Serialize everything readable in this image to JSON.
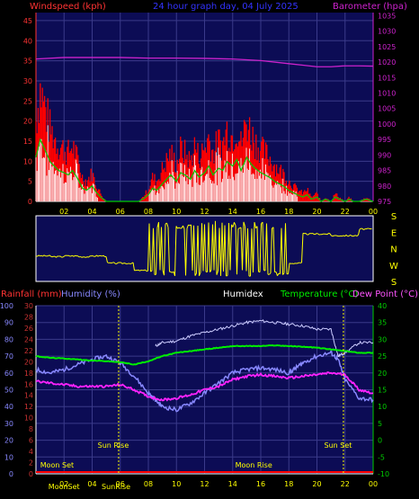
{
  "header": {
    "left_label": "Windspeed (kph)",
    "center_label": "24 hour graph day, 04 July 2025",
    "right_label": "Barometer (hpa)"
  },
  "colors": {
    "plot_bg": "#0c0c55",
    "grid": "#3a3a8a",
    "wind": "#ff0000",
    "gust_white": "#ffffff",
    "wind_green": "#00cc00",
    "barometer": "#cc22cc",
    "direction": "#ffff00",
    "temperature": "#00ee00",
    "humidity": "#8888ff",
    "humidex": "#ccccff",
    "dewpoint": "#ff22ff",
    "rainfall": "#ff0000",
    "axis_left": "#cc3333",
    "axis_left2": "#8888ff",
    "axis_right": "#00cc00",
    "axis_baro": "#cc22cc",
    "sun": "#ffff00"
  },
  "chart_data": [
    {
      "type": "line",
      "name": "wind-and-barometer",
      "x_ticks": [
        "02",
        "04",
        "06",
        "08",
        "10",
        "12",
        "14",
        "16",
        "18",
        "20",
        "22",
        "00"
      ],
      "y_left_ticks": [
        0,
        5,
        10,
        15,
        20,
        25,
        30,
        35,
        40,
        45
      ],
      "y_left_range": [
        0,
        47
      ],
      "y_right_ticks": [
        975,
        980,
        985,
        990,
        995,
        1000,
        1005,
        1010,
        1015,
        1020,
        1025,
        1030,
        1035
      ],
      "y_right_range": [
        975,
        1036
      ],
      "series": [
        {
          "name": "Windspeed (kph)",
          "x": [
            0.0,
            0.3,
            0.6,
            1.0,
            1.3,
            1.6,
            2.0,
            2.3,
            2.6,
            3.0,
            3.3,
            3.6,
            4.0,
            4.3,
            4.6,
            5.0,
            5.3,
            5.6,
            6.0,
            6.3,
            6.6,
            7.0,
            7.3,
            7.6,
            8.0,
            8.3,
            8.6,
            9.0,
            9.3,
            9.6,
            10.0,
            10.3,
            10.6,
            11.0,
            11.3,
            11.6,
            12.0,
            12.3,
            12.6,
            13.0,
            13.3,
            13.6,
            14.0,
            14.3,
            14.6,
            15.0,
            15.3,
            15.6,
            16.0,
            16.3,
            16.6,
            17.0,
            17.3,
            17.6,
            18.0,
            18.3,
            18.6,
            19.0,
            19.3,
            19.6,
            20.0,
            20.3,
            20.6,
            21.0,
            21.3,
            21.6,
            22.0,
            22.3,
            22.6,
            23.0,
            23.5,
            24.0
          ],
          "values": [
            20,
            28,
            24,
            18,
            16,
            14,
            13,
            12,
            14,
            10,
            6,
            5,
            7,
            4,
            2,
            0,
            0,
            0,
            0,
            0,
            0,
            0,
            0,
            1,
            3,
            6,
            5,
            8,
            10,
            12,
            9,
            13,
            12,
            10,
            14,
            11,
            13,
            16,
            12,
            15,
            14,
            18,
            16,
            19,
            14,
            20,
            17,
            15,
            13,
            12,
            11,
            9,
            8,
            7,
            5,
            4,
            3,
            2,
            3,
            1,
            2,
            0,
            1,
            0,
            2,
            1,
            0,
            1,
            0,
            0,
            1,
            0
          ]
        },
        {
          "name": "Barometer (hpa)",
          "x": [
            0,
            2,
            4,
            6,
            8,
            10,
            12,
            14,
            16,
            18,
            19,
            20,
            21,
            22,
            23,
            24
          ],
          "values": [
            1021,
            1021.5,
            1021.5,
            1021.5,
            1021.3,
            1021.3,
            1021.2,
            1021,
            1020.5,
            1019.5,
            1019,
            1018.5,
            1018.5,
            1018.8,
            1018.8,
            1018.7
          ]
        }
      ]
    },
    {
      "type": "line",
      "name": "wind-direction",
      "y_labels": [
        "S",
        "E",
        "N",
        "W",
        "S"
      ],
      "series": [
        {
          "name": "Direction",
          "x": [
            0,
            1,
            2,
            3,
            4,
            4.5,
            5,
            6,
            7,
            7.5,
            8,
            9,
            10,
            11,
            12,
            13,
            14,
            15,
            16,
            17,
            18,
            19,
            20,
            21,
            22,
            23,
            24
          ],
          "values": [
            135,
            130,
            135,
            130,
            135,
            135,
            90,
            90,
            45,
            45,
            350,
            300,
            10,
            320,
            20,
            330,
            10,
            320,
            15,
            330,
            90,
            270,
            270,
            260,
            260,
            300,
            300
          ]
        }
      ]
    },
    {
      "type": "line",
      "name": "temperature-humidity",
      "header_labels": {
        "rainfall": "Rainfall (mm)",
        "humidity": "Humidity (%)",
        "humidex": "Humidex",
        "temperature": "Temperature (°C)",
        "dewpoint": "Dew Point (°C)"
      },
      "x_ticks": [
        "02",
        "04",
        "06",
        "08",
        "10",
        "12",
        "14",
        "16",
        "18",
        "20",
        "22",
        "00"
      ],
      "y_rain_ticks": [
        0,
        2,
        4,
        6,
        8,
        10,
        12,
        14,
        16,
        18,
        20,
        22,
        24,
        26,
        28,
        30
      ],
      "y_hum_ticks": [
        0,
        10,
        20,
        30,
        40,
        50,
        60,
        70,
        80,
        90,
        100
      ],
      "y_temp_ticks": [
        -10,
        -5,
        0,
        5,
        10,
        15,
        20,
        25,
        30,
        35,
        40
      ],
      "y_temp_range": [
        -10,
        40
      ],
      "series": [
        {
          "name": "Humidex",
          "x": [
            8.5,
            9,
            10,
            11,
            12,
            13,
            14,
            15,
            16,
            17,
            18,
            19,
            20,
            21,
            21.5,
            22,
            23,
            24
          ],
          "values": [
            28,
            29,
            29.5,
            31,
            32,
            33,
            34,
            35,
            35.5,
            35,
            34.5,
            34,
            33,
            33,
            25,
            26,
            29,
            29
          ]
        },
        {
          "name": "Temperature (°C)",
          "x": [
            0,
            1,
            2,
            3,
            4,
            5,
            6,
            7,
            8,
            9,
            10,
            11,
            12,
            13,
            14,
            15,
            16,
            17,
            18,
            19,
            20,
            21,
            22,
            23,
            24
          ],
          "values": [
            25,
            24.5,
            24.3,
            24,
            23.7,
            23.5,
            23.2,
            22.5,
            23.5,
            25,
            26,
            26.5,
            27,
            27.5,
            28,
            28,
            28,
            28.2,
            28,
            27.8,
            27.5,
            27,
            26.5,
            26,
            26
          ]
        },
        {
          "name": "Humidity (%)",
          "x": [
            0,
            1,
            2,
            3,
            4,
            5,
            6,
            7,
            8,
            8.5,
            9,
            10,
            11,
            12,
            13,
            14,
            15,
            16,
            17,
            18,
            18.5,
            19,
            20,
            21,
            21.5,
            22,
            23,
            24
          ],
          "values": [
            62,
            60,
            62,
            65,
            68,
            70,
            66,
            58,
            48,
            44,
            40,
            38,
            42,
            48,
            54,
            60,
            62,
            63,
            62,
            60,
            63,
            66,
            70,
            72,
            68,
            56,
            45,
            44
          ]
        },
        {
          "name": "Dew Point (°C)",
          "x": [
            0,
            1,
            2,
            3,
            4,
            5,
            6,
            7,
            8,
            9,
            10,
            11,
            12,
            13,
            14,
            15,
            16,
            17,
            18,
            19,
            20,
            21,
            22,
            23,
            24
          ],
          "values": [
            17.5,
            17,
            16.5,
            16,
            16,
            16,
            16.5,
            15,
            13,
            12,
            12.5,
            13.5,
            15,
            16,
            18,
            19,
            19.5,
            19,
            18.5,
            19,
            19.5,
            20,
            19.5,
            15,
            14
          ]
        },
        {
          "name": "Rainfall (mm)",
          "x": [
            0,
            24
          ],
          "values": [
            0,
            0
          ]
        }
      ],
      "annotations": [
        {
          "label": "Moon Set",
          "x": 1.5,
          "row": "low"
        },
        {
          "label": "Sun Rise",
          "x": 5.5,
          "row": "high"
        },
        {
          "label": "Moon Rise",
          "x": 15.5,
          "row": "low"
        },
        {
          "label": "Sun Set",
          "x": 21.5,
          "row": "high"
        }
      ],
      "bottom_labels": [
        {
          "label": "MoonSet",
          "x": 2.0
        },
        {
          "label": "SunRise",
          "x": 5.7
        }
      ]
    }
  ]
}
